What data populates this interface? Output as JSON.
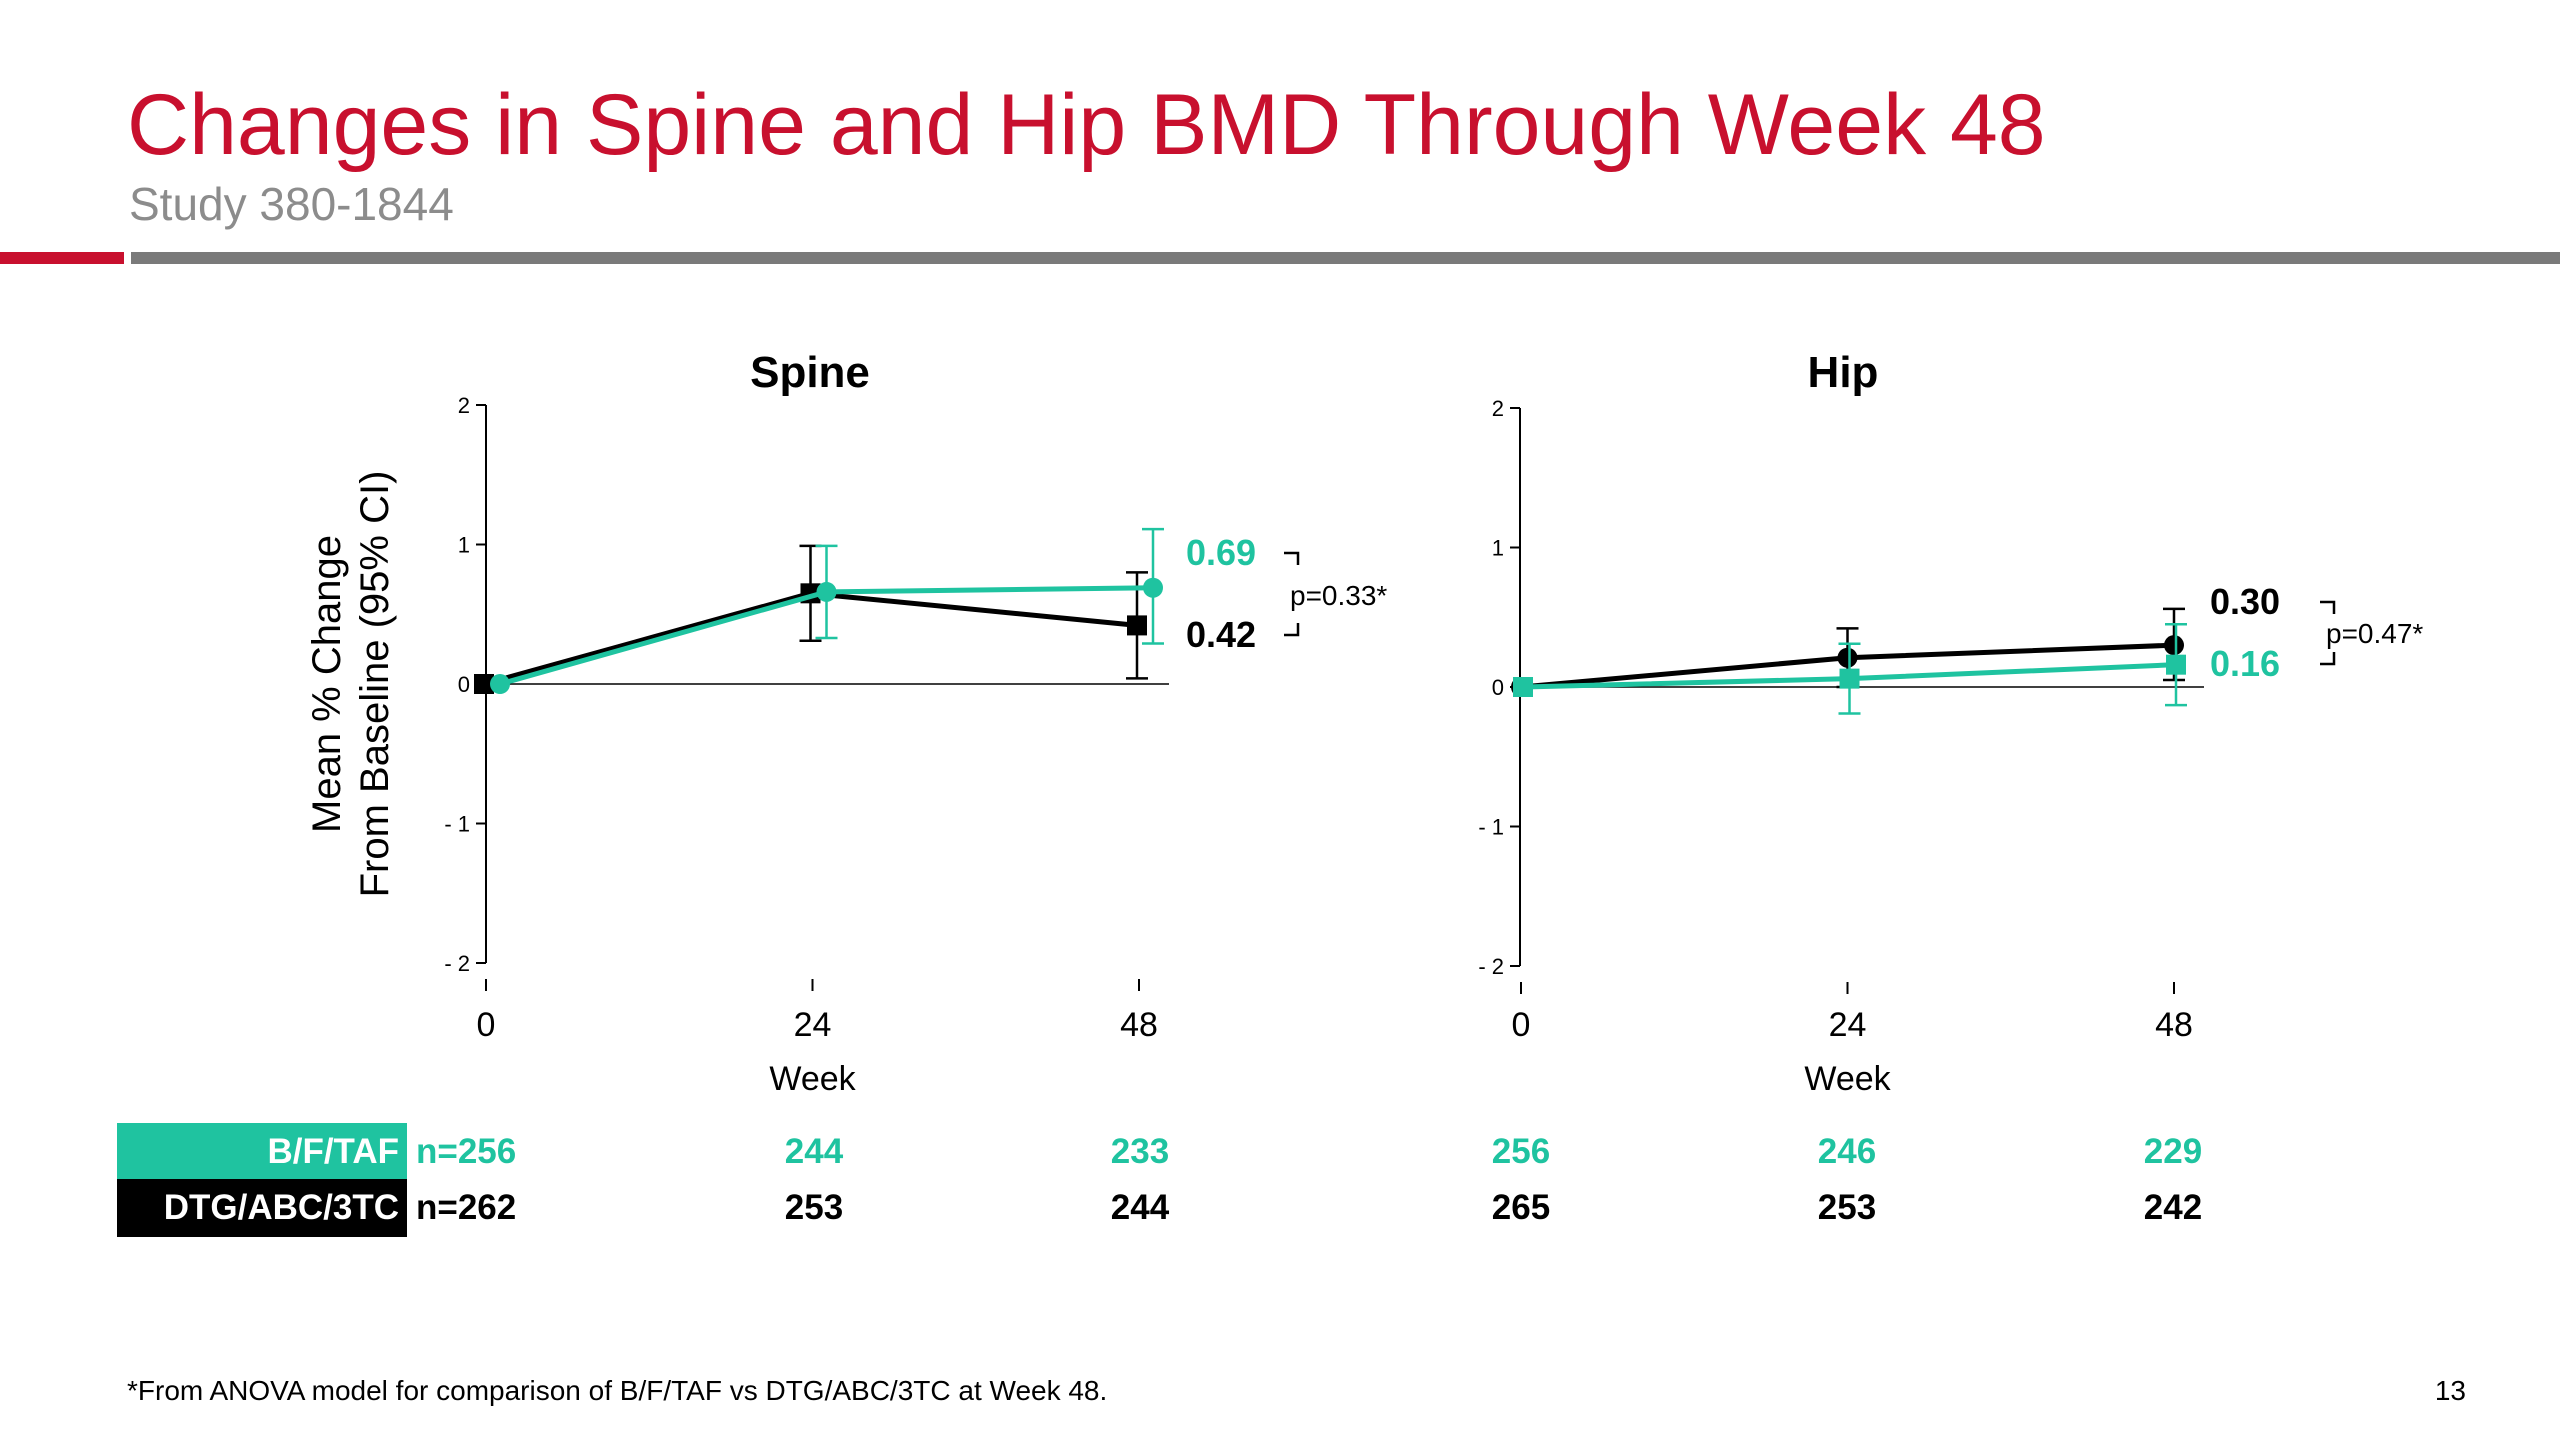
{
  "slide": {
    "title": "Changes in Spine and Hip BMD Through Week 48",
    "subtitle": "Study 380-1844",
    "footnote": "*From ANOVA model for comparison of B/F/TAF vs DTG/ABC/3TC at Week 48.",
    "page_number": "13"
  },
  "colors": {
    "bftaf": "#1fc3a0",
    "dtg": "#000000",
    "accent_red": "#c8102e",
    "rule_gray": "#7a7a7a"
  },
  "chart_data": [
    {
      "type": "line",
      "title": "Spine",
      "xlabel": "Week",
      "ylabel_line1": "Mean % Change",
      "ylabel_line2": "From Baseline (95% CI)",
      "x": [
        0,
        24,
        48
      ],
      "xtick_labels": [
        "0",
        "24",
        "48"
      ],
      "ylim": [
        -2,
        2
      ],
      "yticks": [
        2,
        1,
        0,
        -1,
        -2
      ],
      "ytick_labels": [
        "2",
        "1",
        "0",
        "- 1",
        "- 2"
      ],
      "series": [
        {
          "key": "dtg",
          "marker": "square",
          "values": [
            0,
            0.65,
            0.42
          ],
          "ci_low": [
            0,
            0.31,
            0.04
          ],
          "ci_high": [
            0,
            0.99,
            0.8
          ]
        },
        {
          "key": "bftaf",
          "marker": "circle",
          "values": [
            0,
            0.66,
            0.69
          ],
          "ci_low": [
            0,
            0.33,
            0.29
          ],
          "ci_high": [
            0,
            0.99,
            1.11
          ]
        }
      ],
      "end_labels": {
        "bftaf": "0.69",
        "dtg": "0.42"
      },
      "p_value": "p=0.33*"
    },
    {
      "type": "line",
      "title": "Hip",
      "xlabel": "Week",
      "x": [
        0,
        24,
        48
      ],
      "xtick_labels": [
        "0",
        "24",
        "48"
      ],
      "ylim": [
        -2,
        2
      ],
      "yticks": [
        2,
        1,
        0,
        -1,
        -2
      ],
      "ytick_labels": [
        "2",
        "1",
        "0",
        "- 1",
        "- 2"
      ],
      "series": [
        {
          "key": "dtg",
          "marker": "circle",
          "values": [
            0,
            0.21,
            0.3
          ],
          "ci_low": [
            0,
            0.0,
            0.05
          ],
          "ci_high": [
            0,
            0.42,
            0.56
          ]
        },
        {
          "key": "bftaf",
          "marker": "square",
          "values": [
            0,
            0.06,
            0.16
          ],
          "ci_low": [
            0,
            -0.19,
            -0.13
          ],
          "ci_high": [
            0,
            0.31,
            0.45
          ]
        }
      ],
      "end_labels": {
        "dtg": "0.30",
        "bftaf": "0.16"
      },
      "p_value": "p=0.47*"
    }
  ],
  "at_risk": {
    "bftaf": {
      "label": "B/F/TAF",
      "n0": "n=256",
      "spine": [
        "244",
        "233"
      ],
      "hip": [
        "256",
        "246",
        "229"
      ]
    },
    "dtg": {
      "label": "DTG/ABC/3TC",
      "n0": "n=262",
      "spine": [
        "253",
        "244"
      ],
      "hip": [
        "265",
        "253",
        "242"
      ]
    }
  }
}
